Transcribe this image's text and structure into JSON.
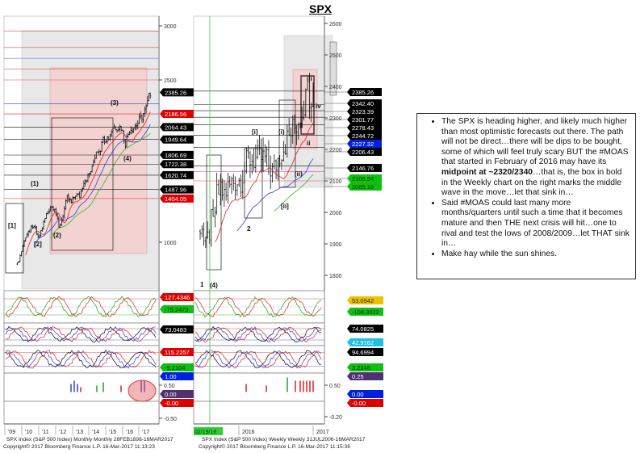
{
  "title": "SPX",
  "note": {
    "bullets": [
      {
        "pre": "The SPX is heading higher, and likely much higher than most optimistic forecasts out there. The path will not be direct…there will be dips to be bought, some of which will feel truly scary BUT the #MOAS that started in February of 2016 may have its ",
        "bold": "midpoint at ~2320/2340",
        "post": "…that is, the box in bold in the Weekly chart on the right marks the middle wave in the move…let that sink in…"
      },
      {
        "pre": "Said #MOAS could last many more months/quarters until such a time that it becomes mature and then THE next crisis will hit…one to rival and test the lows of 2008/2009…let THAT sink in…",
        "bold": "",
        "post": ""
      },
      {
        "pre": "Make hay while the sun shines.",
        "bold": "",
        "post": ""
      }
    ]
  },
  "footer": {
    "left_line1": "SPX Index (S&P 500 Index) Monthly  Monthly 28FEB1898-16MAR2017",
    "left_line2": "Copyright© 2017 Bloomberg Finance L.P.          16-Mar-2017 11:13:23",
    "right_line1": "SPX Index (S&P 500 Index) Weekly  Weekly 31JUL2006-16MAR2017",
    "right_line2": "Copyright© 2017 Bloomberg Finance L.P.          16-Mar-2017 11:15:38"
  },
  "chart_data": [
    {
      "type": "candlestick",
      "frequency": "Monthly",
      "series_name": "SPX Index (S&P 500 Index)",
      "x_ticks": [
        "'09",
        "'10",
        "'11",
        "'12",
        "'13",
        "'14",
        "'15",
        "'16",
        "'17"
      ],
      "y_ticks": [
        1000,
        2500,
        3000
      ],
      "ylim": [
        700,
        3050
      ],
      "closes": {
        "dates": [
          "2009-03",
          "2009-06",
          "2009-09",
          "2009-12",
          "2010-03",
          "2010-06",
          "2010-09",
          "2010-12",
          "2011-03",
          "2011-06",
          "2011-09",
          "2011-12",
          "2012-03",
          "2012-06",
          "2012-09",
          "2012-12",
          "2013-03",
          "2013-06",
          "2013-09",
          "2013-12",
          "2014-03",
          "2014-06",
          "2014-09",
          "2014-12",
          "2015-03",
          "2015-06",
          "2015-09",
          "2015-12",
          "2016-03",
          "2016-06",
          "2016-09",
          "2016-12",
          "2017-03"
        ],
        "values": [
          798,
          919,
          1057,
          1115,
          1169,
          1031,
          1141,
          1258,
          1326,
          1321,
          1131,
          1258,
          1408,
          1362,
          1441,
          1426,
          1569,
          1606,
          1682,
          1848,
          1872,
          1960,
          1972,
          2059,
          2068,
          2063,
          1920,
          2044,
          2060,
          2099,
          2168,
          2239,
          2385
        ]
      },
      "price_labels": [
        {
          "v": "2385.26",
          "c": "#000000"
        },
        {
          "v": "2186.56",
          "c": "#e00000"
        },
        {
          "v": "2064.43",
          "c": "#000000"
        },
        {
          "v": "1949.64",
          "c": "#000000"
        },
        {
          "v": "1806.69",
          "c": "#000000"
        },
        {
          "v": "1722.38",
          "c": "#000000"
        },
        {
          "v": "1620.74",
          "c": "#000000"
        },
        {
          "v": "1487.96",
          "c": "#000000"
        },
        {
          "v": "1404.05",
          "c": "#e00000"
        }
      ],
      "wave_labels": [
        "[1]",
        "[2]",
        "(1)",
        "(2)",
        "(3)",
        "(4)"
      ],
      "indicator_labels": [
        {
          "v": "127.4346",
          "c": "#e00000"
        },
        {
          "v": "-79.2473",
          "c": "#10c010"
        },
        {
          "v": "73.0483",
          "c": "#000000"
        },
        {
          "v": "115.2257",
          "c": "#e00000"
        },
        {
          "v": "-9.2104",
          "c": "#10c010"
        },
        {
          "v": "1.00",
          "c": "#0020e0"
        },
        {
          "v": "0.00",
          "c": "#503070"
        },
        {
          "v": "-0.00",
          "c": "#e00000"
        }
      ],
      "indicator_ticks": [
        "0.50",
        "-0.50"
      ]
    },
    {
      "type": "candlestick",
      "frequency": "Weekly",
      "series_name": "SPX Index (S&P 500 Index)",
      "x_ticks": [
        "2016",
        "2017"
      ],
      "highlighted_date": "02/19/16",
      "y_ticks": [
        1800,
        1900,
        2000,
        2100,
        2200,
        2300,
        2400,
        2500,
        2600
      ],
      "ylim": [
        1780,
        2620
      ],
      "closes": {
        "dates": [
          "2016-01",
          "2016-02",
          "2016-03",
          "2016-04",
          "2016-05",
          "2016-06",
          "2016-07",
          "2016-08",
          "2016-09",
          "2016-10",
          "2016-11",
          "2016-12",
          "2017-01",
          "2017-02",
          "2017-03"
        ],
        "values": [
          1940,
          1932,
          2060,
          2065,
          2097,
          2099,
          2174,
          2171,
          2168,
          2126,
          2199,
          2239,
          2279,
          2364,
          2385
        ]
      },
      "price_labels": [
        {
          "v": "2385.26",
          "c": "#000000"
        },
        {
          "v": "2342.40",
          "c": "#000000"
        },
        {
          "v": "2323.39",
          "c": "#000000"
        },
        {
          "v": "2301.77",
          "c": "#000000"
        },
        {
          "v": "2278.43",
          "c": "#000000"
        },
        {
          "v": "2244.72",
          "c": "#000000"
        },
        {
          "v": "2227.32",
          "c": "#0020e0"
        },
        {
          "v": "2206.43",
          "c": "#000000"
        },
        {
          "v": "2146.76",
          "c": "#000000"
        },
        {
          "v": "2106.94",
          "c": "#10c010"
        },
        {
          "v": "2085.18",
          "c": "#10c010"
        }
      ],
      "wave_labels": [
        "1",
        "2",
        "(4)",
        "[i]",
        "[ii]",
        "(i)",
        "(ii)",
        "i",
        "ii",
        "iii",
        "iv"
      ],
      "indicator_labels": [
        {
          "v": "53.0942",
          "c": "#f0c000"
        },
        {
          "v": "-108.3022",
          "c": "#10c010"
        },
        {
          "v": "74.0825",
          "c": "#000000"
        },
        {
          "v": "42.9162",
          "c": "#20c0e0"
        },
        {
          "v": "94.6994",
          "c": "#000000"
        },
        {
          "v": "3.2348",
          "c": "#10c010"
        },
        {
          "v": "0.25",
          "c": "#503070"
        },
        {
          "v": "0.00",
          "c": "#0020e0"
        },
        {
          "v": "-0.00",
          "c": "#e00000"
        }
      ],
      "indicator_ticks": [
        "0.50",
        "-0.20"
      ]
    }
  ]
}
